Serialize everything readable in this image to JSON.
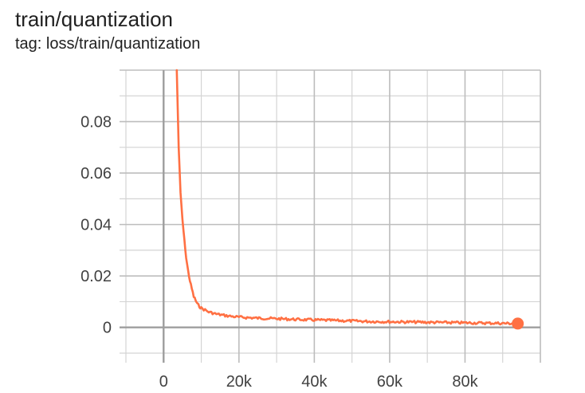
{
  "card": {
    "title": "train/quantization",
    "tag": "tag: loss/train/quantization"
  },
  "chart_data": {
    "type": "line",
    "title": "train/quantization",
    "subtitle": "tag: loss/train/quantization",
    "xlabel": "",
    "ylabel": "",
    "xlim": [
      -10000,
      100000
    ],
    "ylim": [
      -0.01,
      0.1
    ],
    "grid": true,
    "x_ticks": [
      {
        "value": 0,
        "label": "0"
      },
      {
        "value": 20000,
        "label": "20k"
      },
      {
        "value": 40000,
        "label": "40k"
      },
      {
        "value": 60000,
        "label": "60k"
      },
      {
        "value": 80000,
        "label": "80k"
      }
    ],
    "y_ticks": [
      {
        "value": 0,
        "label": "0"
      },
      {
        "value": 0.02,
        "label": "0.02"
      },
      {
        "value": 0.04,
        "label": "0.04"
      },
      {
        "value": 0.06,
        "label": "0.06"
      },
      {
        "value": 0.08,
        "label": "0.08"
      }
    ],
    "series": [
      {
        "color": "#ff7043",
        "x": [
          3500,
          4000,
          4500,
          5000,
          5500,
          6000,
          6500,
          7000,
          7500,
          8000,
          8500,
          9000,
          9500,
          10000,
          11000,
          12000,
          14000,
          16000,
          18000,
          20000,
          25000,
          30000,
          35000,
          40000,
          45000,
          50000,
          55000,
          60000,
          65000,
          70000,
          75000,
          80000,
          85000,
          90000,
          94000
        ],
        "y": [
          0.1,
          0.07,
          0.052,
          0.042,
          0.034,
          0.027,
          0.022,
          0.018,
          0.015,
          0.012,
          0.0105,
          0.009,
          0.0082,
          0.0075,
          0.0068,
          0.006,
          0.0052,
          0.0047,
          0.0043,
          0.004,
          0.0036,
          0.0034,
          0.0031,
          0.0029,
          0.0027,
          0.0025,
          0.0023,
          0.0022,
          0.0021,
          0.002,
          0.0019,
          0.0018,
          0.0017,
          0.0016,
          0.0015
        ]
      }
    ]
  }
}
